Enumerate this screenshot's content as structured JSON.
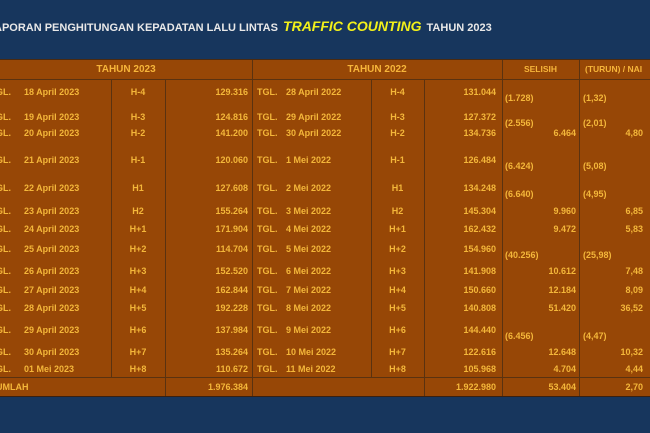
{
  "title": {
    "prefix": "APORAN  PENGHITUNGAN KEPADATAN LALU LINTAS",
    "highlight": "TRAFFIC COUNTING",
    "suffix": "TAHUN 2023"
  },
  "headers": {
    "y2023": "TAHUN 2023",
    "y2022": "TAHUN 2022",
    "selisih": "SELISIH",
    "persen": "(TURUN) / NAI"
  },
  "colors": {
    "background": "#17365d",
    "table": "#974706",
    "text": "#f4b73a",
    "highlight": "#f2f01a"
  },
  "rows": [
    {
      "tgl1": "GL.",
      "date1": "18 April 2023",
      "h1": "H-4",
      "v1": "129.316",
      "tgl2": "TGL.",
      "date2": "28 April 2022",
      "h2": "H-4",
      "v2": "131.044",
      "sel": "(1.728)",
      "pct": "(1,32)"
    },
    {
      "tgl1": "GL.",
      "date1": "19 April 2023",
      "h1": "H-3",
      "v1": "124.816",
      "tgl2": "TGL.",
      "date2": "29 April 2022",
      "h2": "H-3",
      "v2": "127.372",
      "sel": "(2.556)",
      "pct": "(2,01)"
    },
    {
      "tgl1": "GL.",
      "date1": "20 April 2023",
      "h1": "H-2",
      "v1": "141.200",
      "tgl2": "TGL.",
      "date2": "30 April 2022",
      "h2": "H-2",
      "v2": "134.736",
      "sel": "6.464",
      "pct": "4,80"
    },
    {
      "tgl1": "GL.",
      "date1": "21 April 2023",
      "h1": "H-1",
      "v1": "120.060",
      "tgl2": "TGL.",
      "date2": "1 Mei 2022",
      "h2": "H-1",
      "v2": "126.484",
      "sel": "(6.424)",
      "pct": "(5,08)"
    },
    {
      "tgl1": "GL.",
      "date1": "22 April 2023",
      "h1": "H1",
      "v1": "127.608",
      "tgl2": "TGL.",
      "date2": "2 Mei 2022",
      "h2": "H1",
      "v2": "134.248",
      "sel": "(6.640)",
      "pct": "(4,95)"
    },
    {
      "tgl1": "GL.",
      "date1": "23 April 2023",
      "h1": "H2",
      "v1": "155.264",
      "tgl2": "TGL.",
      "date2": "3 Mei 2022",
      "h2": "H2",
      "v2": "145.304",
      "sel": "9.960",
      "pct": "6,85"
    },
    {
      "tgl1": "GL.",
      "date1": "24 April 2023",
      "h1": "H+1",
      "v1": "171.904",
      "tgl2": "TGL.",
      "date2": "4 Mei 2022",
      "h2": "H+1",
      "v2": "162.432",
      "sel": "9.472",
      "pct": "5,83"
    },
    {
      "tgl1": "GL.",
      "date1": "25 April 2023",
      "h1": "H+2",
      "v1": "114.704",
      "tgl2": "TGL.",
      "date2": "5 Mei 2022",
      "h2": "H+2",
      "v2": "154.960",
      "sel": "(40.256)",
      "pct": "(25,98)"
    },
    {
      "tgl1": "GL.",
      "date1": "26 April 2023",
      "h1": "H+3",
      "v1": "152.520",
      "tgl2": "TGL.",
      "date2": "6 Mei 2022",
      "h2": "H+3",
      "v2": "141.908",
      "sel": "10.612",
      "pct": "7,48"
    },
    {
      "tgl1": "GL.",
      "date1": "27 April 2023",
      "h1": "H+4",
      "v1": "162.844",
      "tgl2": "TGL.",
      "date2": "7 Mei 2022",
      "h2": "H+4",
      "v2": "150.660",
      "sel": "12.184",
      "pct": "8,09"
    },
    {
      "tgl1": "GL.",
      "date1": "28 April 2023",
      "h1": "H+5",
      "v1": "192.228",
      "tgl2": "TGL.",
      "date2": "8 Mei 2022",
      "h2": "H+5",
      "v2": "140.808",
      "sel": "51.420",
      "pct": "36,52"
    },
    {
      "tgl1": "GL.",
      "date1": "29 April 2023",
      "h1": "H+6",
      "v1": "137.984",
      "tgl2": "TGL.",
      "date2": "9 Mei 2022",
      "h2": "H+6",
      "v2": "144.440",
      "sel": "(6.456)",
      "pct": "(4,47)"
    },
    {
      "tgl1": "GL.",
      "date1": "30 April 2023",
      "h1": "H+7",
      "v1": "135.264",
      "tgl2": "TGL.",
      "date2": "10 Mei 2022",
      "h2": "H+7",
      "v2": "122.616",
      "sel": "12.648",
      "pct": "10,32"
    },
    {
      "tgl1": "GL.",
      "date1": "01 Mei 2023",
      "h1": "H+8",
      "v1": "110.672",
      "tgl2": "TGL.",
      "date2": "11 Mei 2022",
      "h2": "H+8",
      "v2": "105.968",
      "sel": "4.704",
      "pct": "4,44"
    }
  ],
  "total": {
    "label": "UMLAH",
    "v1": "1.976.384",
    "v2": "1.922.980",
    "sel": "53.404",
    "pct": "2,70"
  }
}
